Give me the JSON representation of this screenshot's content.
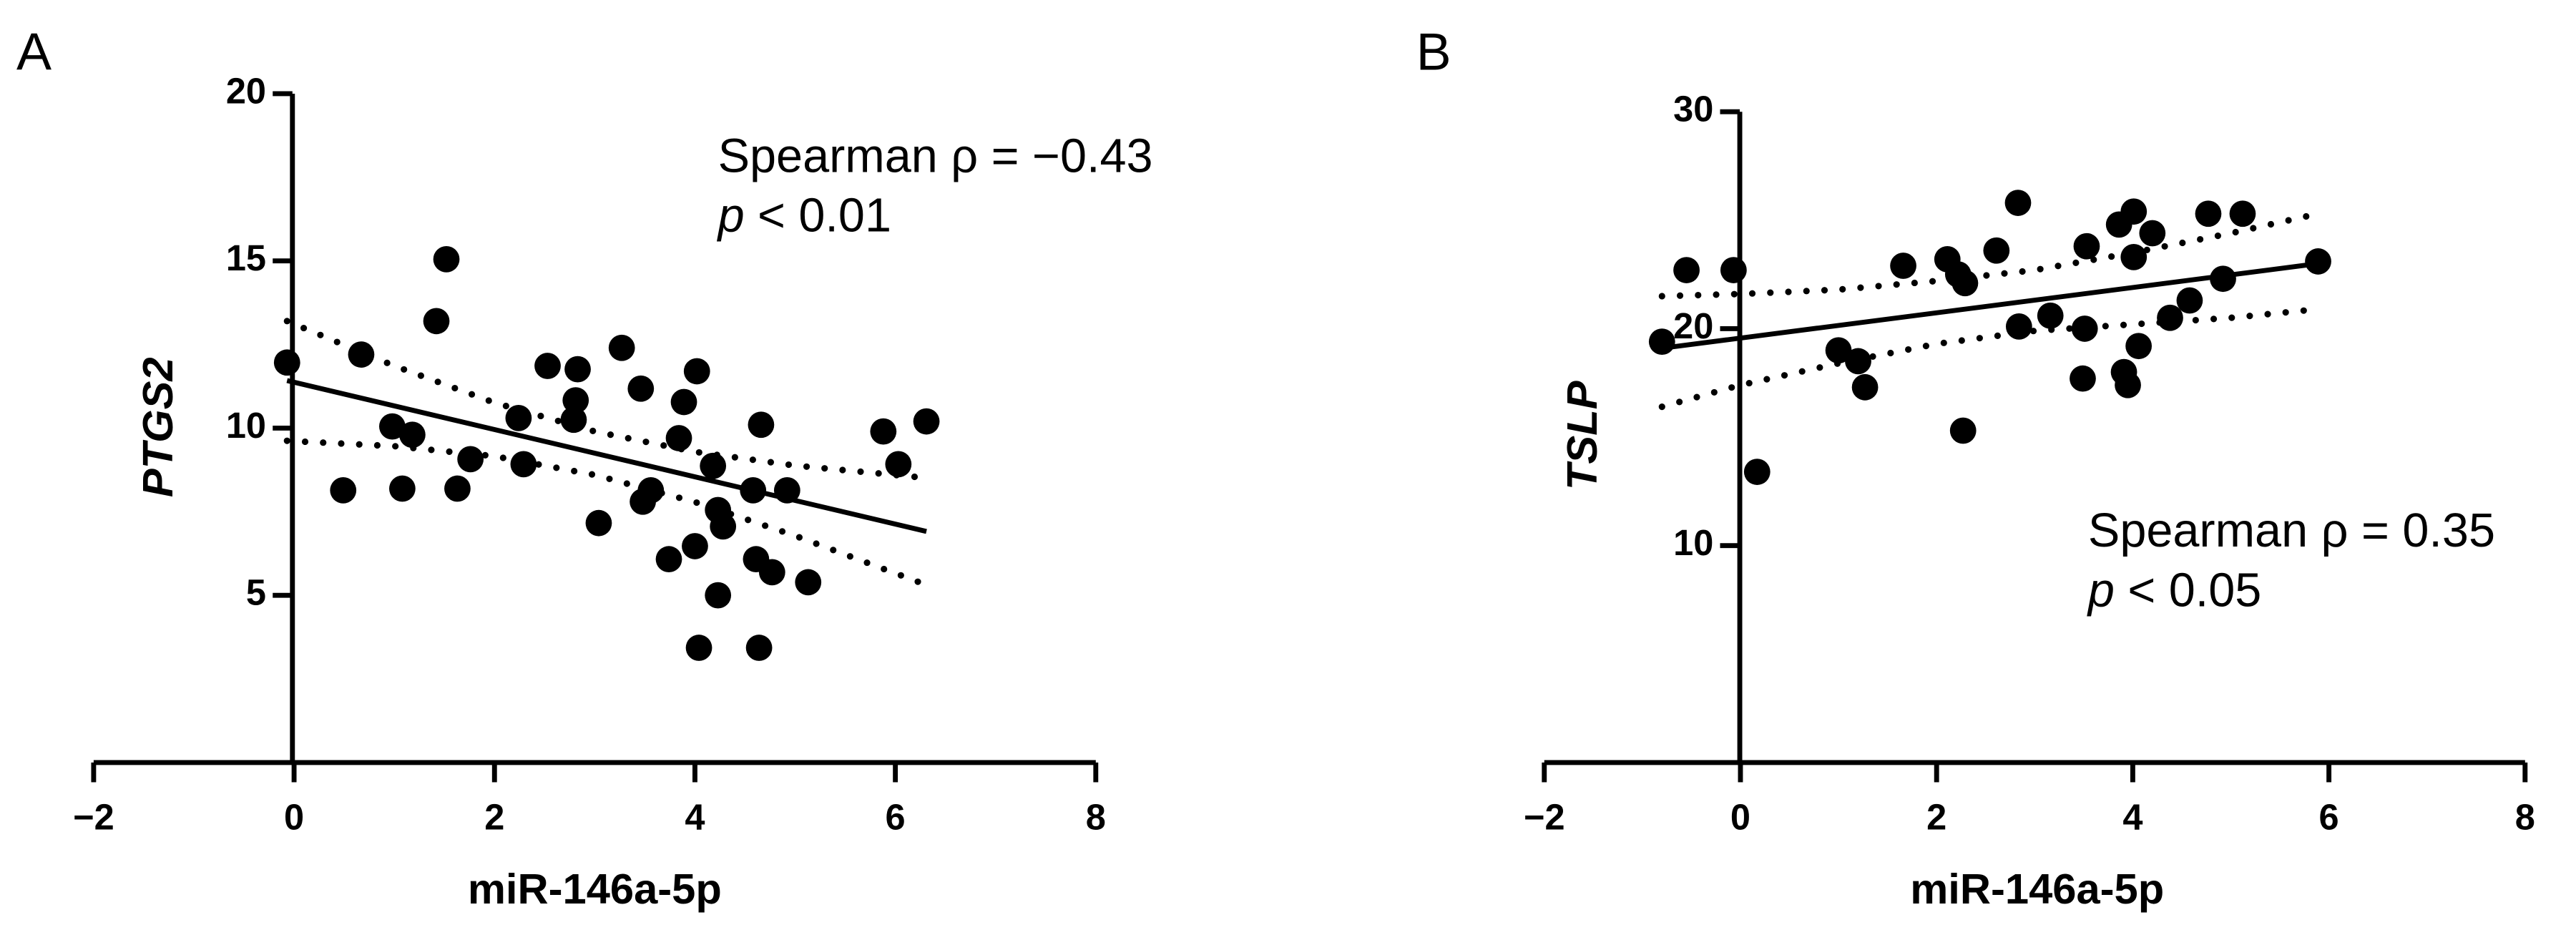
{
  "chart_data": [
    {
      "type": "scatter",
      "panel_label": "A",
      "x_label": "miR-146a-5p",
      "y_label": "PTGS2",
      "annotation": {
        "statistic": "Spearman ρ = −0.43",
        "p_symbol": "p",
        "p_text": "< 0.01"
      },
      "color": "#000000",
      "x": [
        -0.07,
        0.67,
        0.49,
        0.98,
        1.18,
        1.08,
        1.52,
        1.42,
        1.63,
        1.76,
        2.24,
        2.29,
        2.53,
        2.83,
        2.81,
        2.79,
        3.04,
        3.27,
        3.46,
        3.56,
        3.48,
        3.74,
        3.89,
        3.84,
        4.02,
        4.0,
        4.04,
        4.18,
        4.23,
        4.28,
        4.23,
        4.58,
        4.66,
        4.61,
        4.64,
        4.77,
        4.92,
        5.13,
        5.88,
        6.03,
        6.31
      ],
      "values": [
        11.96,
        12.2,
        8.14,
        10.05,
        9.8,
        8.19,
        15.05,
        13.2,
        8.19,
        9.07,
        10.3,
        8.92,
        11.86,
        11.76,
        10.83,
        10.25,
        7.16,
        12.4,
        11.18,
        8.14,
        7.8,
        6.08,
        10.78,
        9.7,
        11.7,
        6.47,
        3.43,
        8.87,
        7.55,
        7.06,
        5.0,
        8.14,
        10.1,
        6.08,
        3.43,
        5.69,
        8.14,
        5.39,
        9.9,
        8.92,
        10.2
      ],
      "fit": {
        "x": [
          -0.07,
          6.31
        ],
        "values": [
          11.42,
          6.91
        ]
      },
      "confidence_band": {
        "x": [
          -0.07,
          1,
          2,
          3,
          4,
          5,
          6.31
        ],
        "upper": [
          13.2,
          11.86,
          10.76,
          9.9,
          9.29,
          8.88,
          8.51
        ],
        "lower": [
          9.62,
          9.46,
          9.16,
          8.6,
          7.79,
          6.78,
          5.31
        ]
      },
      "xlim": [
        -2,
        8
      ],
      "xticks": [
        {
          "value": -2,
          "label": "−2"
        },
        0,
        2,
        4,
        6,
        8
      ],
      "ylim": [
        0,
        20
      ],
      "yticks": [
        5,
        10,
        15,
        20
      ]
    },
    {
      "type": "scatter",
      "panel_label": "B",
      "x_label": "miR-146a-5p",
      "y_label": "TSLP",
      "annotation": {
        "statistic": "Spearman ρ = 0.35",
        "p_symbol": "p",
        "p_text": "< 0.05"
      },
      "color": "#000000",
      "x": [
        -0.8,
        -0.55,
        -0.07,
        0.17,
        1.0,
        1.2,
        1.27,
        1.66,
        2.11,
        2.22,
        2.29,
        2.27,
        2.61,
        2.83,
        2.84,
        3.16,
        3.53,
        3.51,
        3.49,
        3.86,
        3.91,
        3.95,
        4.01,
        4.01,
        4.06,
        4.2,
        4.38,
        4.58,
        4.77,
        5.12,
        4.92,
        5.89
      ],
      "values": [
        19.4,
        22.7,
        22.7,
        13.4,
        19.0,
        18.5,
        17.3,
        22.9,
        23.2,
        22.5,
        22.1,
        15.3,
        23.6,
        25.8,
        20.1,
        20.6,
        23.8,
        20.0,
        17.7,
        24.8,
        18.0,
        17.4,
        25.4,
        23.3,
        19.2,
        24.4,
        20.5,
        21.3,
        25.3,
        25.3,
        22.3,
        23.1
      ],
      "fit": {
        "x": [
          -0.8,
          5.89
        ],
        "values": [
          19.1,
          23.0
        ]
      },
      "confidence_band": {
        "x": [
          -0.8,
          0,
          1,
          2,
          3,
          4,
          5,
          5.89
        ],
        "upper": [
          21.5,
          21.6,
          21.8,
          22.2,
          22.7,
          23.5,
          24.4,
          25.3
        ],
        "lower": [
          16.4,
          17.4,
          18.4,
          19.3,
          19.9,
          20.2,
          20.5,
          20.9
        ]
      },
      "xlim": [
        -2,
        8
      ],
      "xticks": [
        {
          "value": -2,
          "label": "−2"
        },
        0,
        2,
        4,
        6,
        8
      ],
      "ylim": [
        0,
        30
      ],
      "yticks": [
        10,
        20,
        30
      ]
    }
  ]
}
